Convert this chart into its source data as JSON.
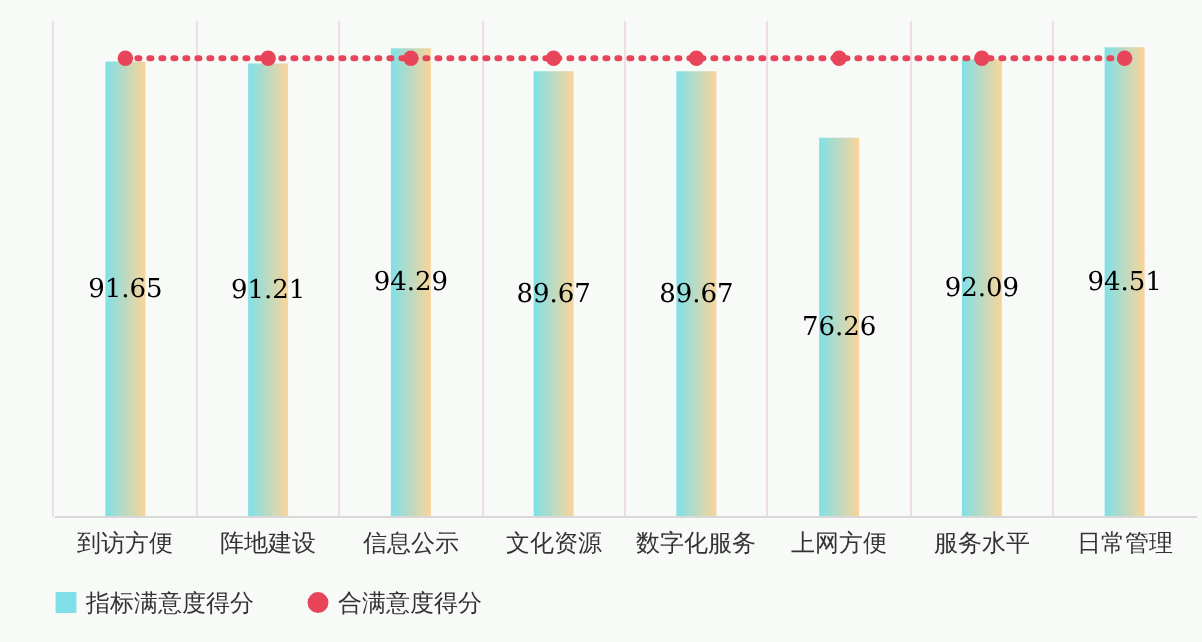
{
  "chart_data": {
    "type": "bar",
    "categories": [
      "到访方便",
      "阵地建设",
      "信息公示",
      "文化资源",
      "数字化服务",
      "上网方便",
      "服务水平",
      "日常管理"
    ],
    "series": [
      {
        "name": "指标满意度得分",
        "color": "#7fe0e8",
        "values": [
          91.65,
          91.21,
          94.29,
          89.67,
          89.67,
          76.26,
          92.09,
          94.51
        ],
        "value_labels": [
          "91.65",
          "91.21",
          "94.29",
          "89.67",
          "89.67",
          "76.26",
          "92.09",
          "94.51"
        ]
      },
      {
        "name": "合满意度得分",
        "type": "line",
        "color": "#e8455a",
        "line_style": "dotted",
        "marker": "circle",
        "values": [
          92.3,
          92.3,
          92.3,
          92.3,
          92.3,
          92.3,
          92.3,
          92.3
        ]
      }
    ],
    "grid": "x",
    "legend": "bottom"
  }
}
